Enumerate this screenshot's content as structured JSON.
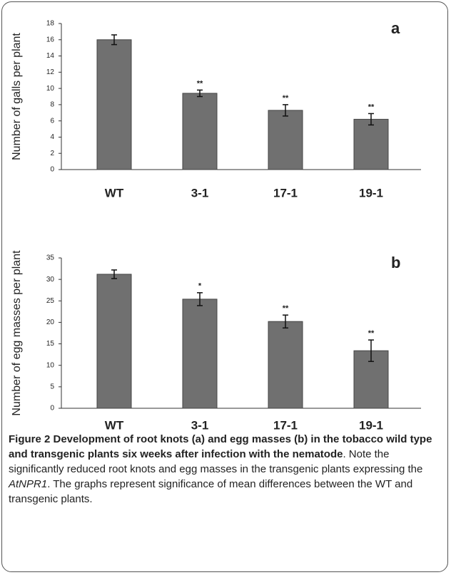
{
  "chart_data": [
    {
      "type": "bar",
      "panel": "a",
      "y_label": "Number of galls per plant",
      "categories": [
        "WT",
        "3-1",
        "17-1",
        "19-1"
      ],
      "series": [
        {
          "color": "#707070",
          "values": [
            16,
            9.4,
            7.3,
            6.2
          ],
          "errors": [
            0.6,
            0.4,
            0.7,
            0.7
          ],
          "significance": [
            null,
            "**",
            "**",
            "**"
          ]
        }
      ],
      "ylim": [
        0,
        18
      ],
      "yticks": [
        0,
        2,
        4,
        6,
        8,
        10,
        12,
        14,
        16,
        18
      ]
    },
    {
      "type": "bar",
      "panel": "b",
      "y_label": "Number of egg masses per plant",
      "categories": [
        "WT",
        "3-1",
        "17-1",
        "19-1"
      ],
      "series": [
        {
          "color": "#707070",
          "values": [
            31.2,
            25.4,
            20.2,
            13.4
          ],
          "errors": [
            1,
            1.5,
            1.5,
            2.5
          ],
          "significance": [
            null,
            "*",
            "**",
            "**"
          ]
        }
      ],
      "ylim": [
        0,
        35
      ],
      "yticks": [
        0,
        5,
        10,
        15,
        20,
        25,
        30,
        35
      ]
    }
  ],
  "caption": {
    "title": "Figure 2 Development of root knots (a) and egg masses (b) in the tobacco wild type and transgenic plants six weeks after infection with the nematode",
    "text_before": ". Note the significantly reduced root knots and egg masses in the transgenic plants expressing the ",
    "gene": "AtNPR1",
    "text_after": ". The graphs represent significance of mean differences between the WT and transgenic plants."
  }
}
